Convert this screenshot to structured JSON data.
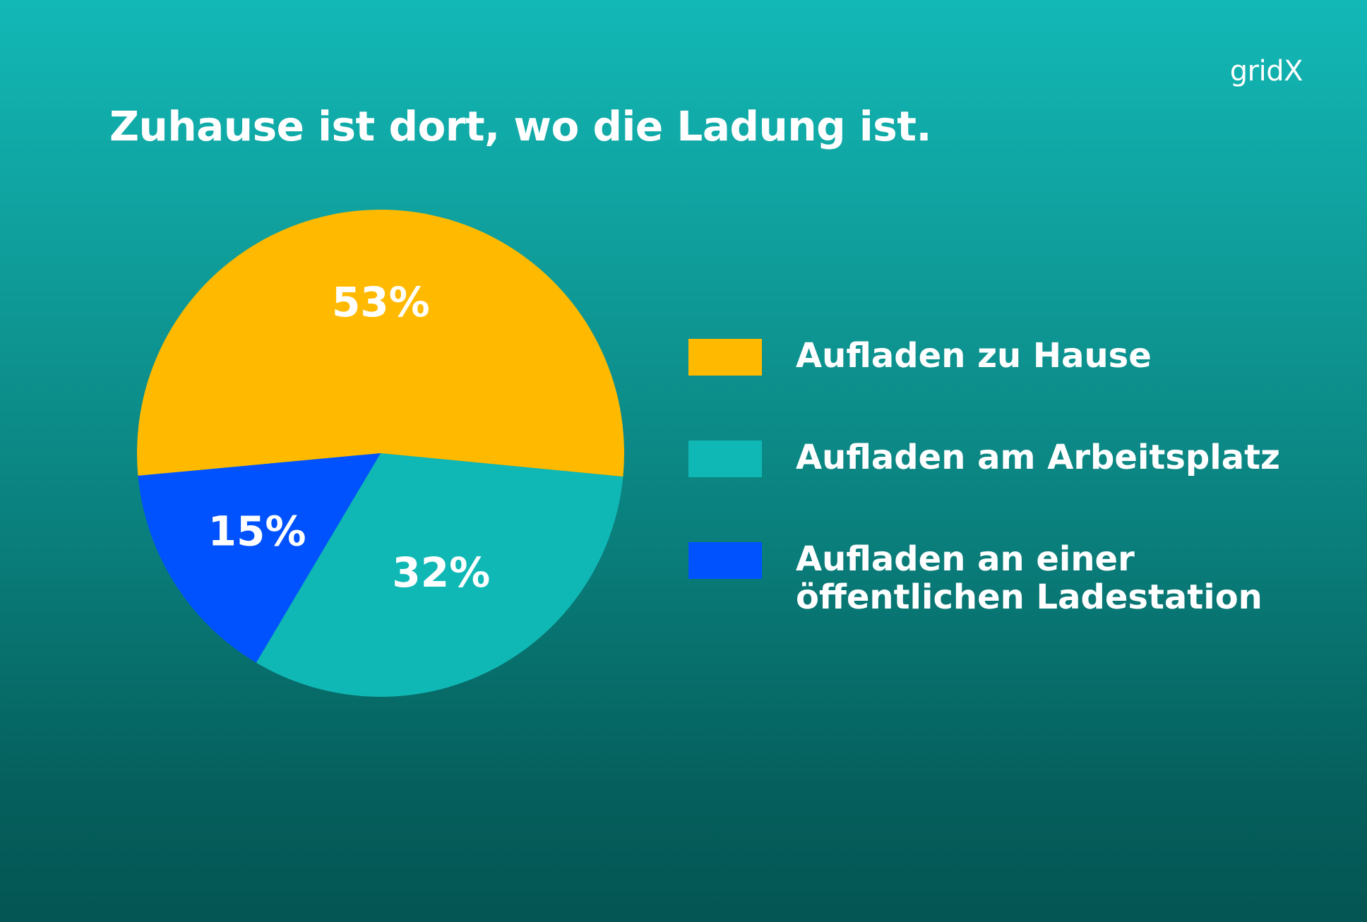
{
  "brand": {
    "logo_text": "gridX"
  },
  "header": {
    "title": "Zuhause ist dort, wo die Ladung ist."
  },
  "colors": {
    "home": "#FFBA00",
    "work": "#10B8B5",
    "public": "#0052FF",
    "text": "#FFFFFF"
  },
  "chart_data": {
    "type": "pie",
    "title": "Zuhause ist dort, wo die Ladung ist.",
    "unit": "%",
    "slices": [
      {
        "label": "Aufladen zu Hause",
        "value": 53,
        "display": "53%",
        "color": "#FFBA00"
      },
      {
        "label": "Aufladen am Arbeitsplatz",
        "value": 32,
        "display": "32%",
        "color": "#10B8B5"
      },
      {
        "label": "Aufladen an einer öffentlichen Ladestation",
        "value": 15,
        "display": "15%",
        "color": "#0052FF"
      }
    ],
    "legend": {
      "position": "right",
      "entries": [
        {
          "lines": [
            "Aufladen zu Hause"
          ]
        },
        {
          "lines": [
            "Aufladen am Arbeitsplatz"
          ]
        },
        {
          "lines": [
            "Aufladen an einer",
            "öffentlichen Ladestation"
          ]
        }
      ]
    }
  }
}
